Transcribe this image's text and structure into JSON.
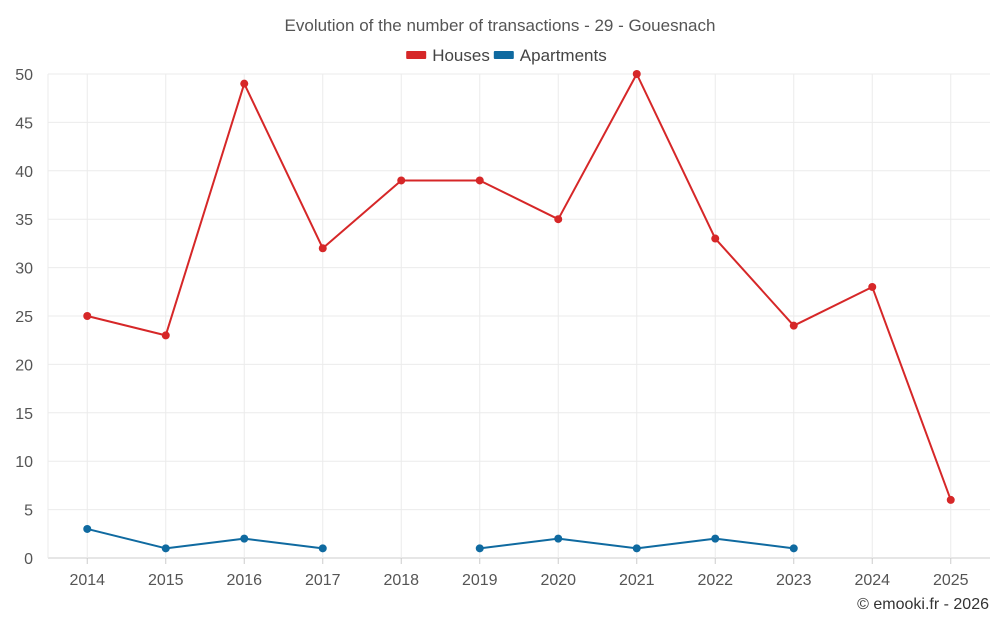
{
  "chart_data": {
    "type": "line",
    "title": "Evolution of the number of transactions - 29 - Gouesnach",
    "x": [
      "2014",
      "2015",
      "2016",
      "2017",
      "2018",
      "2019",
      "2020",
      "2021",
      "2022",
      "2023",
      "2024",
      "2025"
    ],
    "ylim": [
      0,
      50
    ],
    "yticks": [
      0,
      5,
      10,
      15,
      20,
      25,
      30,
      35,
      40,
      45,
      50
    ],
    "grid": true,
    "legend_position": "top-center",
    "series": [
      {
        "name": "Houses",
        "color": "#d62728",
        "values": [
          25,
          23,
          49,
          32,
          39,
          39,
          35,
          50,
          33,
          24,
          28,
          6
        ]
      },
      {
        "name": "Apartments",
        "color": "#0f6aa0",
        "values": [
          3,
          1,
          2,
          1,
          null,
          1,
          2,
          1,
          2,
          1,
          null,
          null
        ]
      }
    ]
  },
  "credit": "© emooki.fr - 2026"
}
